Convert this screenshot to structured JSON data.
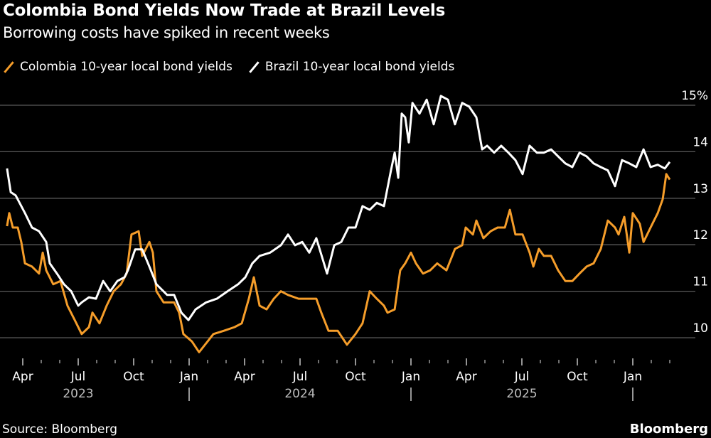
{
  "chart_data": {
    "type": "line",
    "title": "Colombia Bond Yields Now Trade at Brazil Levels",
    "subtitle": "Borrowing costs have spiked in recent weeks",
    "x_unit": "months since Jan 2023",
    "ylim": [
      9.5,
      15.4
    ],
    "yticks": [
      10,
      11,
      12,
      13,
      14,
      15
    ],
    "ytick_labels": [
      "10",
      "11",
      "12",
      "13",
      "14",
      "15%"
    ],
    "xticks": [
      {
        "m": 3,
        "label": "Apr"
      },
      {
        "m": 6,
        "label": "Jul"
      },
      {
        "m": 9,
        "label": "Oct"
      },
      {
        "m": 12,
        "label": "Jan"
      },
      {
        "m": 15,
        "label": "Apr"
      },
      {
        "m": 18,
        "label": "Jul"
      },
      {
        "m": 21,
        "label": "Oct"
      },
      {
        "m": 24,
        "label": "Jan"
      },
      {
        "m": 27,
        "label": "Apr"
      },
      {
        "m": 30,
        "label": "Jul"
      },
      {
        "m": 33,
        "label": "Oct"
      },
      {
        "m": 36,
        "label": "Jan"
      }
    ],
    "year_labels": [
      {
        "m": 6,
        "label": "2023"
      },
      {
        "m": 18,
        "label": "2024"
      },
      {
        "m": 30,
        "label": "2025"
      }
    ],
    "year_separators": [
      12,
      24,
      36
    ],
    "grid": true,
    "legend_position": "top-left",
    "series": [
      {
        "name": "Colombia 10-year local bond yields",
        "color": "#f59d2a",
        "points": [
          [
            2.15,
            12.4
          ],
          [
            2.27,
            12.68
          ],
          [
            2.46,
            12.37
          ],
          [
            2.73,
            12.37
          ],
          [
            2.92,
            12.06
          ],
          [
            3.12,
            11.6
          ],
          [
            3.5,
            11.53
          ],
          [
            3.88,
            11.38
          ],
          [
            4.08,
            11.83
          ],
          [
            4.27,
            11.45
          ],
          [
            4.65,
            11.15
          ],
          [
            5.04,
            11.22
          ],
          [
            5.42,
            10.69
          ],
          [
            5.81,
            10.38
          ],
          [
            6.19,
            10.08
          ],
          [
            6.58,
            10.23
          ],
          [
            6.77,
            10.54
          ],
          [
            7.15,
            10.31
          ],
          [
            7.54,
            10.69
          ],
          [
            7.92,
            11.0
          ],
          [
            8.31,
            11.15
          ],
          [
            8.62,
            11.38
          ],
          [
            8.88,
            12.22
          ],
          [
            9.27,
            12.29
          ],
          [
            9.46,
            11.76
          ],
          [
            9.85,
            12.06
          ],
          [
            10.04,
            11.83
          ],
          [
            10.23,
            11.0
          ],
          [
            10.62,
            10.76
          ],
          [
            11.19,
            10.76
          ],
          [
            11.46,
            10.54
          ],
          [
            11.69,
            10.08
          ],
          [
            12.15,
            9.92
          ],
          [
            12.54,
            9.69
          ],
          [
            13.0,
            9.92
          ],
          [
            13.31,
            10.08
          ],
          [
            13.88,
            10.15
          ],
          [
            14.46,
            10.23
          ],
          [
            14.85,
            10.31
          ],
          [
            15.23,
            10.84
          ],
          [
            15.5,
            11.3
          ],
          [
            15.81,
            10.69
          ],
          [
            16.19,
            10.61
          ],
          [
            16.58,
            10.84
          ],
          [
            16.96,
            11.0
          ],
          [
            17.35,
            10.92
          ],
          [
            17.92,
            10.84
          ],
          [
            18.5,
            10.84
          ],
          [
            18.88,
            10.84
          ],
          [
            19.15,
            10.54
          ],
          [
            19.54,
            10.15
          ],
          [
            20.04,
            10.15
          ],
          [
            20.54,
            9.85
          ],
          [
            21.0,
            10.08
          ],
          [
            21.38,
            10.31
          ],
          [
            21.77,
            11.0
          ],
          [
            22.15,
            10.84
          ],
          [
            22.54,
            10.69
          ],
          [
            22.73,
            10.54
          ],
          [
            23.12,
            10.61
          ],
          [
            23.42,
            11.45
          ],
          [
            23.69,
            11.6
          ],
          [
            24.0,
            11.83
          ],
          [
            24.27,
            11.6
          ],
          [
            24.65,
            11.38
          ],
          [
            25.04,
            11.45
          ],
          [
            25.42,
            11.6
          ],
          [
            25.92,
            11.45
          ],
          [
            26.38,
            11.91
          ],
          [
            26.77,
            11.99
          ],
          [
            26.96,
            12.37
          ],
          [
            27.35,
            12.22
          ],
          [
            27.54,
            12.52
          ],
          [
            27.92,
            12.14
          ],
          [
            28.31,
            12.29
          ],
          [
            28.69,
            12.37
          ],
          [
            29.08,
            12.37
          ],
          [
            29.35,
            12.75
          ],
          [
            29.65,
            12.22
          ],
          [
            30.04,
            12.22
          ],
          [
            30.42,
            11.83
          ],
          [
            30.62,
            11.53
          ],
          [
            30.92,
            11.91
          ],
          [
            31.19,
            11.76
          ],
          [
            31.58,
            11.76
          ],
          [
            31.96,
            11.45
          ],
          [
            32.35,
            11.22
          ],
          [
            32.73,
            11.22
          ],
          [
            33.12,
            11.38
          ],
          [
            33.5,
            11.53
          ],
          [
            33.88,
            11.6
          ],
          [
            34.27,
            11.91
          ],
          [
            34.65,
            12.52
          ],
          [
            35.04,
            12.37
          ],
          [
            35.23,
            12.22
          ],
          [
            35.54,
            12.6
          ],
          [
            35.81,
            11.83
          ],
          [
            36.0,
            12.68
          ],
          [
            36.38,
            12.45
          ],
          [
            36.58,
            12.06
          ],
          [
            36.96,
            12.37
          ],
          [
            37.35,
            12.68
          ],
          [
            37.62,
            12.98
          ],
          [
            37.81,
            13.52
          ],
          [
            38.0,
            13.4
          ]
        ]
      },
      {
        "name": "Brazil 10-year local bond yields",
        "color": "#ffffff",
        "points": [
          [
            2.15,
            13.64
          ],
          [
            2.35,
            13.13
          ],
          [
            2.62,
            13.06
          ],
          [
            3.12,
            12.68
          ],
          [
            3.5,
            12.37
          ],
          [
            3.88,
            12.29
          ],
          [
            4.27,
            12.06
          ],
          [
            4.46,
            11.6
          ],
          [
            4.85,
            11.38
          ],
          [
            5.23,
            11.15
          ],
          [
            5.62,
            11.0
          ],
          [
            6.0,
            10.69
          ],
          [
            6.19,
            10.76
          ],
          [
            6.58,
            10.87
          ],
          [
            6.96,
            10.84
          ],
          [
            7.35,
            11.22
          ],
          [
            7.73,
            11.0
          ],
          [
            8.12,
            11.22
          ],
          [
            8.5,
            11.3
          ],
          [
            8.69,
            11.45
          ],
          [
            9.08,
            11.9
          ],
          [
            9.46,
            11.9
          ],
          [
            9.85,
            11.53
          ],
          [
            10.23,
            11.15
          ],
          [
            10.81,
            10.92
          ],
          [
            11.19,
            10.92
          ],
          [
            11.58,
            10.54
          ],
          [
            11.96,
            10.38
          ],
          [
            12.35,
            10.61
          ],
          [
            12.92,
            10.76
          ],
          [
            13.5,
            10.84
          ],
          [
            14.08,
            11.0
          ],
          [
            14.65,
            11.15
          ],
          [
            15.04,
            11.3
          ],
          [
            15.42,
            11.6
          ],
          [
            15.81,
            11.76
          ],
          [
            16.38,
            11.83
          ],
          [
            16.96,
            11.99
          ],
          [
            17.35,
            12.22
          ],
          [
            17.73,
            11.99
          ],
          [
            18.12,
            12.06
          ],
          [
            18.5,
            11.83
          ],
          [
            18.88,
            12.14
          ],
          [
            19.46,
            11.38
          ],
          [
            19.85,
            11.99
          ],
          [
            20.23,
            12.06
          ],
          [
            20.62,
            12.37
          ],
          [
            21.0,
            12.37
          ],
          [
            21.38,
            12.83
          ],
          [
            21.77,
            12.75
          ],
          [
            22.15,
            12.9
          ],
          [
            22.54,
            12.83
          ],
          [
            22.92,
            13.6
          ],
          [
            23.12,
            13.98
          ],
          [
            23.31,
            13.44
          ],
          [
            23.5,
            14.82
          ],
          [
            23.69,
            14.74
          ],
          [
            23.88,
            14.2
          ],
          [
            24.08,
            15.05
          ],
          [
            24.46,
            14.82
          ],
          [
            24.85,
            15.12
          ],
          [
            25.23,
            14.59
          ],
          [
            25.62,
            15.2
          ],
          [
            26.0,
            15.12
          ],
          [
            26.38,
            14.59
          ],
          [
            26.77,
            15.05
          ],
          [
            27.15,
            14.97
          ],
          [
            27.54,
            14.74
          ],
          [
            27.85,
            14.05
          ],
          [
            28.12,
            14.13
          ],
          [
            28.5,
            13.98
          ],
          [
            28.88,
            14.13
          ],
          [
            29.27,
            13.98
          ],
          [
            29.65,
            13.82
          ],
          [
            30.04,
            13.52
          ],
          [
            30.42,
            14.13
          ],
          [
            30.81,
            13.98
          ],
          [
            31.19,
            13.98
          ],
          [
            31.58,
            14.05
          ],
          [
            31.96,
            13.9
          ],
          [
            32.35,
            13.75
          ],
          [
            32.73,
            13.67
          ],
          [
            33.12,
            13.98
          ],
          [
            33.5,
            13.9
          ],
          [
            33.88,
            13.75
          ],
          [
            34.27,
            13.67
          ],
          [
            34.65,
            13.6
          ],
          [
            35.04,
            13.26
          ],
          [
            35.42,
            13.82
          ],
          [
            35.81,
            13.75
          ],
          [
            36.19,
            13.67
          ],
          [
            36.58,
            14.05
          ],
          [
            36.96,
            13.67
          ],
          [
            37.35,
            13.72
          ],
          [
            37.73,
            13.64
          ],
          [
            38.0,
            13.78
          ]
        ]
      }
    ]
  },
  "footer": {
    "source": "Source: Bloomberg",
    "brand": "Bloomberg"
  }
}
